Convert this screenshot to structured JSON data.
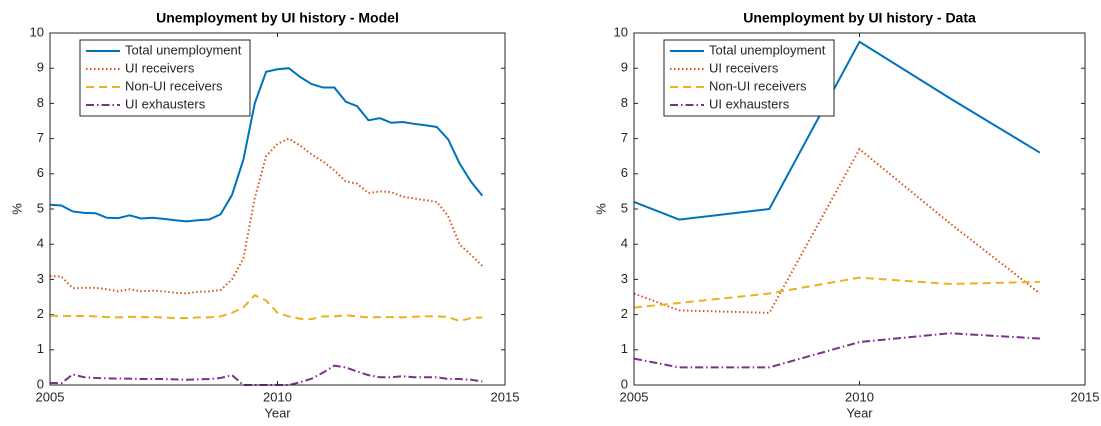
{
  "chart_data": [
    {
      "type": "line",
      "title": "Unemployment by UI history - Model",
      "xlabel": "Year",
      "ylabel": "%",
      "x": [
        2005,
        2005.25,
        2005.5,
        2005.75,
        2006,
        2006.25,
        2006.5,
        2006.75,
        2007,
        2007.25,
        2007.5,
        2007.75,
        2008,
        2008.25,
        2008.5,
        2008.75,
        2009,
        2009.25,
        2009.5,
        2009.75,
        2010,
        2010.25,
        2010.5,
        2010.75,
        2011,
        2011.25,
        2011.5,
        2011.75,
        2012,
        2012.25,
        2012.5,
        2012.75,
        2013,
        2013.25,
        2013.5,
        2013.75,
        2014,
        2014.25,
        2014.5
      ],
      "series": [
        {
          "name": "Total unemployment",
          "color": "#0072BD",
          "dash": "solid",
          "values": [
            5.12,
            5.1,
            4.93,
            4.89,
            4.88,
            4.75,
            4.74,
            4.82,
            4.73,
            4.75,
            4.72,
            4.68,
            4.65,
            4.68,
            4.7,
            4.85,
            5.4,
            6.4,
            8.0,
            8.9,
            8.97,
            9.0,
            8.75,
            8.55,
            8.45,
            8.45,
            8.05,
            7.92,
            7.52,
            7.58,
            7.45,
            7.47,
            7.42,
            7.38,
            7.33,
            6.98,
            6.3,
            5.78,
            5.38
          ]
        },
        {
          "name": "UI receivers",
          "color": "#D95319",
          "dash": "dotted",
          "values": [
            3.1,
            3.08,
            2.75,
            2.76,
            2.76,
            2.72,
            2.66,
            2.72,
            2.66,
            2.68,
            2.66,
            2.62,
            2.6,
            2.65,
            2.66,
            2.7,
            3.0,
            3.6,
            5.3,
            6.5,
            6.85,
            7.0,
            6.8,
            6.55,
            6.35,
            6.1,
            5.78,
            5.72,
            5.45,
            5.5,
            5.48,
            5.35,
            5.3,
            5.25,
            5.2,
            4.8,
            4.0,
            3.7,
            3.38
          ]
        },
        {
          "name": "Non-UI receivers",
          "color": "#EDB120",
          "dash": "dashed",
          "values": [
            1.97,
            1.96,
            1.96,
            1.96,
            1.95,
            1.93,
            1.92,
            1.94,
            1.93,
            1.93,
            1.92,
            1.9,
            1.9,
            1.92,
            1.92,
            1.95,
            2.05,
            2.2,
            2.55,
            2.4,
            2.05,
            1.95,
            1.88,
            1.87,
            1.95,
            1.95,
            1.98,
            1.95,
            1.92,
            1.93,
            1.93,
            1.92,
            1.94,
            1.95,
            1.95,
            1.93,
            1.82,
            1.9,
            1.92
          ]
        },
        {
          "name": "UI exhausters",
          "color": "#7E2F8E",
          "dash": "dashdot",
          "values": [
            0.06,
            0.05,
            0.3,
            0.22,
            0.2,
            0.19,
            0.18,
            0.18,
            0.17,
            0.17,
            0.17,
            0.16,
            0.15,
            0.16,
            0.17,
            0.2,
            0.28,
            0.0,
            0.0,
            0.0,
            0.0,
            0.0,
            0.08,
            0.18,
            0.35,
            0.55,
            0.5,
            0.38,
            0.28,
            0.22,
            0.22,
            0.25,
            0.22,
            0.22,
            0.22,
            0.17,
            0.17,
            0.15,
            0.1
          ]
        }
      ],
      "xlim": [
        2005,
        2015
      ],
      "xticks": [
        2005,
        2010,
        2015
      ],
      "ylim": [
        0,
        10
      ],
      "yticks": [
        0,
        1,
        2,
        3,
        4,
        5,
        6,
        7,
        8,
        9,
        10
      ],
      "legend": "upper left"
    },
    {
      "type": "line",
      "title": "Unemployment by UI history - Data",
      "xlabel": "Year",
      "ylabel": "%",
      "x": [
        2005,
        2006,
        2008,
        2010,
        2012,
        2014
      ],
      "series": [
        {
          "name": "Total unemployment",
          "color": "#0072BD",
          "dash": "solid",
          "values": [
            5.2,
            4.7,
            5.0,
            9.75,
            8.15,
            6.6
          ]
        },
        {
          "name": "UI receivers",
          "color": "#D95319",
          "dash": "dotted",
          "values": [
            2.6,
            2.12,
            2.05,
            6.7,
            4.6,
            2.6
          ]
        },
        {
          "name": "Non-UI receivers",
          "color": "#EDB120",
          "dash": "dashed",
          "values": [
            2.2,
            2.33,
            2.6,
            3.05,
            2.87,
            2.93
          ]
        },
        {
          "name": "UI exhausters",
          "color": "#7E2F8E",
          "dash": "dashdot",
          "values": [
            0.75,
            0.5,
            0.5,
            1.22,
            1.47,
            1.32
          ]
        }
      ],
      "xlim": [
        2005,
        2015
      ],
      "xticks": [
        2005,
        2010,
        2015
      ],
      "ylim": [
        0,
        10
      ],
      "yticks": [
        0,
        1,
        2,
        3,
        4,
        5,
        6,
        7,
        8,
        9,
        10
      ],
      "legend": "upper left"
    }
  ]
}
